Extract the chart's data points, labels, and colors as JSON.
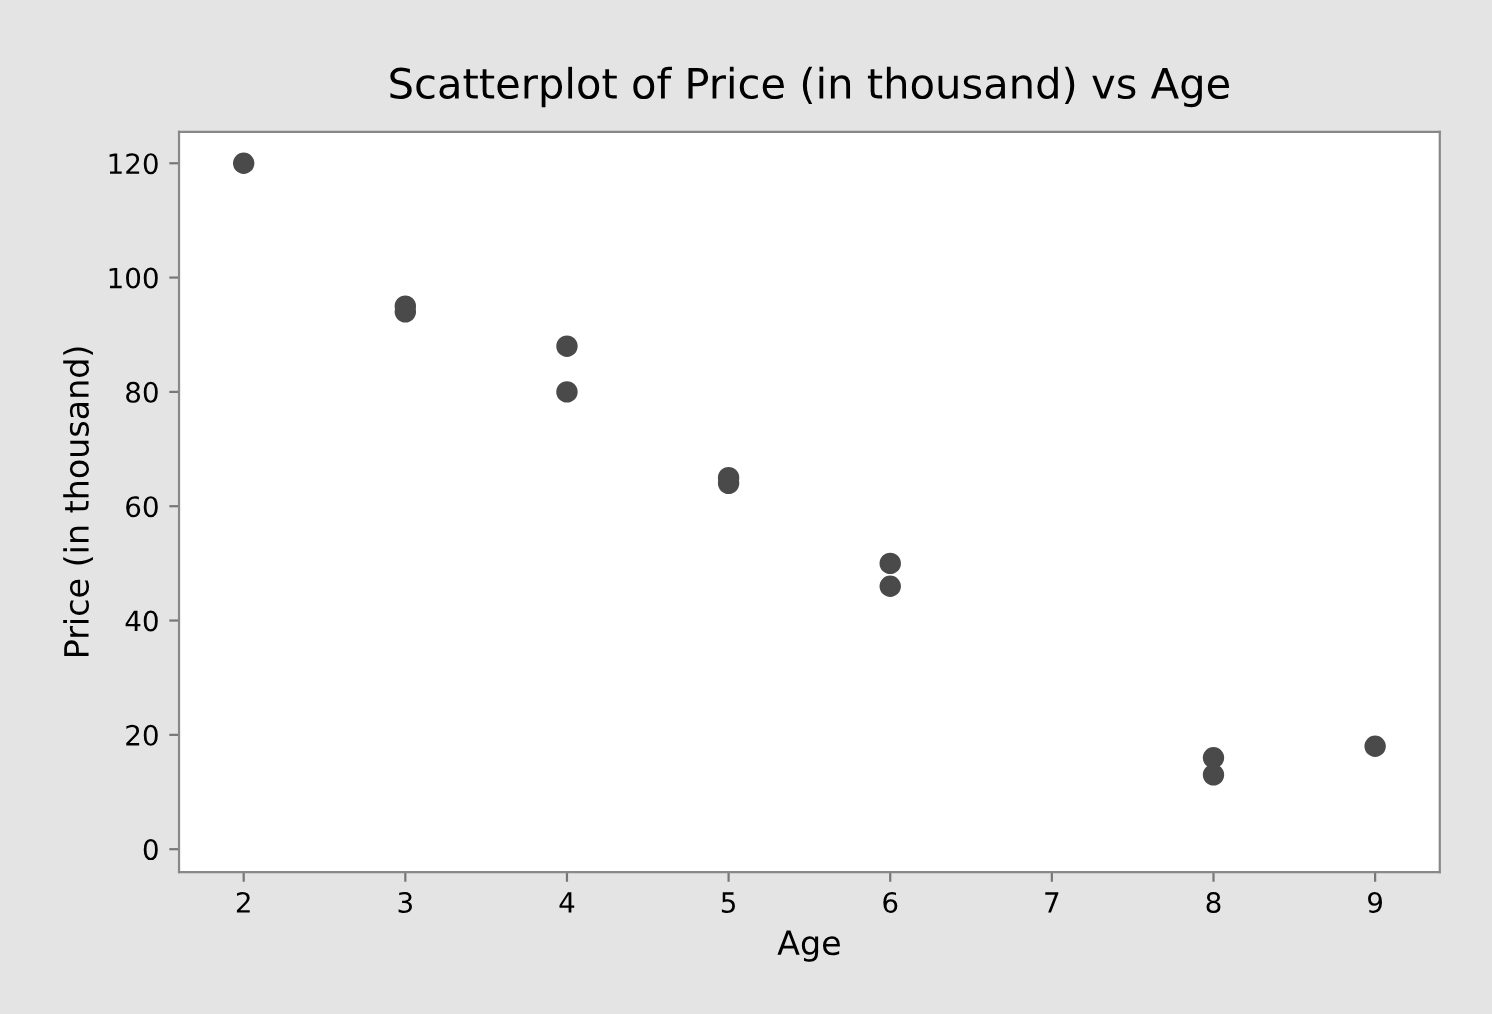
{
  "chart_data": {
    "type": "scatter",
    "title": "Scatterplot of Price (in thousand) vs Age",
    "xlabel": "Age",
    "ylabel": "Price (in thousand)",
    "x": [
      2,
      3,
      3,
      4,
      4,
      5,
      5,
      6,
      6,
      8,
      8,
      9
    ],
    "series": [
      {
        "color": "#4a4a4a",
        "values": [
          120,
          95,
          94,
          88,
          80,
          65,
          64,
          50,
          46,
          16,
          13,
          18
        ]
      }
    ],
    "xlim": [
      1.6,
      9.4
    ],
    "ylim": [
      -4,
      125.5
    ],
    "xticks": [
      2,
      3,
      4,
      5,
      6,
      7,
      8,
      9
    ],
    "yticks": [
      0,
      20,
      40,
      60,
      80,
      100,
      120
    ],
    "marker": "circle",
    "grid": false,
    "legend": false
  }
}
